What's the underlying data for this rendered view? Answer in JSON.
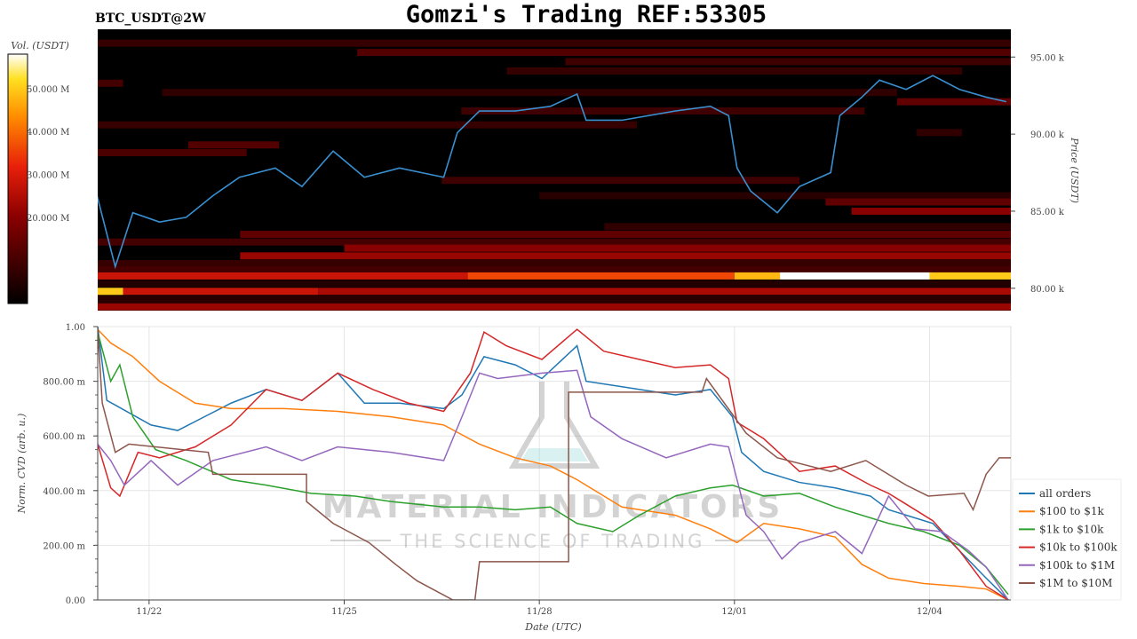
{
  "title": "Gomzi's Trading REF:53305",
  "chart_data": [
    {
      "type": "heatmap",
      "title": "BTC_USDT@2W",
      "ylabel": "Price (USDT)",
      "colorbar_label": "Vol. (USDT)",
      "colorbar_ticks": [
        "20.000 M",
        "30.000 M",
        "40.000 M",
        "50.000 M"
      ],
      "colorbar_values": [
        20,
        30,
        40,
        50
      ],
      "colorbar_range": [
        0,
        58
      ],
      "yticks": [
        "80.00 k",
        "85.00 k",
        "90.00 k",
        "95.00 k"
      ],
      "ytick_values": [
        80,
        85,
        90,
        95
      ],
      "ylim": [
        78.55,
        96.8
      ],
      "xlim_days": [
        0.21,
        14.25
      ],
      "price_series": [
        [
          0.2,
          86.0
        ],
        [
          0.48,
          81.4
        ],
        [
          0.75,
          84.9
        ],
        [
          1.16,
          84.3
        ],
        [
          1.57,
          84.6
        ],
        [
          1.98,
          86.0
        ],
        [
          2.39,
          87.2
        ],
        [
          2.94,
          87.8
        ],
        [
          3.35,
          86.6
        ],
        [
          3.83,
          88.9
        ],
        [
          4.31,
          87.2
        ],
        [
          4.85,
          87.8
        ],
        [
          5.53,
          87.2
        ],
        [
          5.74,
          90.1
        ],
        [
          6.08,
          91.5
        ],
        [
          6.63,
          91.5
        ],
        [
          7.17,
          91.8
        ],
        [
          7.58,
          92.6
        ],
        [
          7.72,
          90.9
        ],
        [
          8.27,
          90.9
        ],
        [
          9.09,
          91.5
        ],
        [
          9.63,
          91.8
        ],
        [
          9.91,
          91.2
        ],
        [
          10.04,
          87.8
        ],
        [
          10.25,
          86.3
        ],
        [
          10.66,
          84.9
        ],
        [
          11.0,
          86.6
        ],
        [
          11.48,
          87.5
        ],
        [
          11.62,
          91.2
        ],
        [
          11.96,
          92.4
        ],
        [
          12.23,
          93.5
        ],
        [
          12.64,
          92.9
        ],
        [
          13.05,
          93.8
        ],
        [
          13.46,
          92.9
        ],
        [
          13.87,
          92.4
        ],
        [
          14.18,
          92.1
        ]
      ],
      "bands": [
        [
          95.9,
          0.21,
          14.25,
          8
        ],
        [
          95.3,
          4.2,
          14.25,
          12
        ],
        [
          94.7,
          7.4,
          14.25,
          9
        ],
        [
          94.1,
          6.5,
          13.5,
          8
        ],
        [
          93.3,
          0.21,
          0.6,
          10
        ],
        [
          92.7,
          1.2,
          12.5,
          7
        ],
        [
          92.1,
          12.5,
          14.25,
          14
        ],
        [
          91.5,
          5.8,
          12.0,
          9
        ],
        [
          90.6,
          0.21,
          8.5,
          8
        ],
        [
          90.1,
          12.8,
          13.5,
          7
        ],
        [
          89.3,
          1.6,
          3.0,
          12
        ],
        [
          88.8,
          0.21,
          2.5,
          11
        ],
        [
          87.0,
          5.5,
          11.0,
          9
        ],
        [
          86.0,
          7.0,
          14.25,
          6
        ],
        [
          85.6,
          11.4,
          14.25,
          14
        ],
        [
          85.0,
          11.8,
          14.25,
          20
        ],
        [
          84.0,
          8.0,
          14.25,
          7
        ],
        [
          83.5,
          2.4,
          14.25,
          14
        ],
        [
          83.0,
          0.21,
          14.25,
          10
        ],
        [
          82.6,
          4.0,
          14.25,
          20
        ],
        [
          82.1,
          2.4,
          14.25,
          22
        ],
        [
          81.6,
          0.21,
          14.25,
          8
        ],
        [
          81.2,
          0.21,
          14.25,
          10
        ],
        [
          80.8,
          0.21,
          5.9,
          28
        ],
        [
          80.8,
          5.9,
          10.0,
          36
        ],
        [
          80.8,
          10.0,
          10.7,
          48
        ],
        [
          80.8,
          10.7,
          13.0,
          58
        ],
        [
          80.8,
          13.0,
          14.25,
          50
        ],
        [
          80.3,
          0.21,
          14.25,
          5
        ],
        [
          79.8,
          0.21,
          0.6,
          50
        ],
        [
          79.8,
          0.6,
          3.6,
          28
        ],
        [
          79.8,
          3.6,
          14.25,
          24
        ],
        [
          79.3,
          0.21,
          14.25,
          6
        ],
        [
          78.8,
          0.21,
          14.25,
          22
        ]
      ]
    },
    {
      "type": "line",
      "ylabel": "Norm. CVD (arb. u.)",
      "xlabel": "Date (UTC)",
      "ylim": [
        0,
        1
      ],
      "yticks": [
        "0.00",
        "200.00 m",
        "400.00 m",
        "600.00 m",
        "800.00 m",
        "1.00"
      ],
      "ytick_values": [
        0,
        0.2,
        0.4,
        0.6,
        0.8,
        1
      ],
      "xticks": [
        "11/22",
        "11/25",
        "11/28",
        "12/01",
        "12/04"
      ],
      "xtick_days": [
        1,
        4,
        7,
        10,
        13
      ],
      "xlim_days": [
        0.21,
        14.25
      ],
      "watermark": {
        "line1": "MATERIAL INDICATORS",
        "line2": "THE SCIENCE OF TRADING"
      },
      "legend_position": "bottom-right",
      "series": [
        {
          "name": "all orders",
          "color": "#1f77b4",
          "points": [
            [
              0.21,
              1.0
            ],
            [
              0.35,
              0.73
            ],
            [
              1.03,
              0.64
            ],
            [
              1.44,
              0.62
            ],
            [
              1.85,
              0.67
            ],
            [
              2.26,
              0.72
            ],
            [
              2.8,
              0.77
            ],
            [
              3.35,
              0.73
            ],
            [
              3.9,
              0.83
            ],
            [
              4.31,
              0.72
            ],
            [
              4.85,
              0.72
            ],
            [
              5.53,
              0.7
            ],
            [
              5.81,
              0.75
            ],
            [
              6.15,
              0.89
            ],
            [
              6.63,
              0.86
            ],
            [
              7.04,
              0.81
            ],
            [
              7.58,
              0.93
            ],
            [
              7.72,
              0.8
            ],
            [
              8.27,
              0.78
            ],
            [
              9.09,
              0.75
            ],
            [
              9.63,
              0.77
            ],
            [
              9.97,
              0.67
            ],
            [
              10.11,
              0.54
            ],
            [
              10.45,
              0.47
            ],
            [
              11.0,
              0.43
            ],
            [
              11.55,
              0.41
            ],
            [
              12.09,
              0.38
            ],
            [
              12.37,
              0.33
            ],
            [
              13.05,
              0.28
            ],
            [
              13.46,
              0.18
            ],
            [
              13.87,
              0.08
            ],
            [
              14.21,
              0.0
            ]
          ]
        },
        {
          "name": "$100 to $1k",
          "color": "#ff7f0e",
          "points": [
            [
              0.21,
              0.99
            ],
            [
              0.41,
              0.94
            ],
            [
              0.75,
              0.89
            ],
            [
              1.16,
              0.8
            ],
            [
              1.71,
              0.72
            ],
            [
              2.26,
              0.7
            ],
            [
              3.08,
              0.7
            ],
            [
              3.9,
              0.69
            ],
            [
              4.72,
              0.67
            ],
            [
              5.53,
              0.64
            ],
            [
              6.08,
              0.57
            ],
            [
              6.63,
              0.52
            ],
            [
              7.17,
              0.49
            ],
            [
              7.58,
              0.44
            ],
            [
              8.27,
              0.34
            ],
            [
              9.09,
              0.31
            ],
            [
              9.63,
              0.26
            ],
            [
              10.04,
              0.21
            ],
            [
              10.45,
              0.28
            ],
            [
              11.0,
              0.26
            ],
            [
              11.55,
              0.23
            ],
            [
              11.96,
              0.13
            ],
            [
              12.37,
              0.08
            ],
            [
              12.91,
              0.06
            ],
            [
              13.46,
              0.05
            ],
            [
              13.87,
              0.04
            ],
            [
              14.21,
              0.0
            ]
          ]
        },
        {
          "name": "$1k to $10k",
          "color": "#2ca02c",
          "points": [
            [
              0.21,
              0.98
            ],
            [
              0.41,
              0.8
            ],
            [
              0.55,
              0.86
            ],
            [
              0.75,
              0.67
            ],
            [
              1.1,
              0.55
            ],
            [
              1.57,
              0.51
            ],
            [
              2.26,
              0.44
            ],
            [
              2.8,
              0.42
            ],
            [
              3.49,
              0.39
            ],
            [
              4.17,
              0.38
            ],
            [
              4.72,
              0.36
            ],
            [
              5.53,
              0.34
            ],
            [
              6.08,
              0.34
            ],
            [
              6.63,
              0.33
            ],
            [
              7.17,
              0.34
            ],
            [
              7.58,
              0.28
            ],
            [
              8.13,
              0.25
            ],
            [
              8.54,
              0.31
            ],
            [
              9.09,
              0.38
            ],
            [
              9.63,
              0.41
            ],
            [
              9.97,
              0.42
            ],
            [
              10.45,
              0.38
            ],
            [
              11.0,
              0.39
            ],
            [
              11.55,
              0.34
            ],
            [
              12.37,
              0.28
            ],
            [
              12.91,
              0.25
            ],
            [
              13.46,
              0.2
            ],
            [
              13.87,
              0.12
            ],
            [
              14.21,
              0.02
            ]
          ]
        },
        {
          "name": "$10k to $100k",
          "color": "#d62728",
          "points": [
            [
              0.21,
              0.57
            ],
            [
              0.41,
              0.41
            ],
            [
              0.55,
              0.38
            ],
            [
              0.83,
              0.54
            ],
            [
              1.16,
              0.52
            ],
            [
              1.71,
              0.56
            ],
            [
              2.26,
              0.64
            ],
            [
              2.8,
              0.77
            ],
            [
              3.35,
              0.73
            ],
            [
              3.9,
              0.83
            ],
            [
              4.44,
              0.77
            ],
            [
              4.99,
              0.72
            ],
            [
              5.53,
              0.69
            ],
            [
              5.94,
              0.83
            ],
            [
              6.15,
              0.98
            ],
            [
              6.49,
              0.93
            ],
            [
              7.04,
              0.88
            ],
            [
              7.58,
              0.99
            ],
            [
              7.99,
              0.91
            ],
            [
              8.54,
              0.88
            ],
            [
              9.09,
              0.85
            ],
            [
              9.63,
              0.86
            ],
            [
              9.91,
              0.81
            ],
            [
              10.04,
              0.65
            ],
            [
              10.45,
              0.59
            ],
            [
              11.0,
              0.47
            ],
            [
              11.55,
              0.49
            ],
            [
              12.09,
              0.42
            ],
            [
              12.37,
              0.39
            ],
            [
              13.05,
              0.29
            ],
            [
              13.46,
              0.18
            ],
            [
              13.87,
              0.05
            ],
            [
              14.21,
              0.0
            ]
          ]
        },
        {
          "name": "$100k to $1M",
          "color": "#9467bd",
          "points": [
            [
              0.21,
              0.57
            ],
            [
              0.41,
              0.51
            ],
            [
              0.62,
              0.42
            ],
            [
              1.03,
              0.51
            ],
            [
              1.44,
              0.42
            ],
            [
              1.98,
              0.51
            ],
            [
              2.8,
              0.56
            ],
            [
              3.35,
              0.51
            ],
            [
              3.9,
              0.56
            ],
            [
              4.72,
              0.54
            ],
            [
              5.53,
              0.51
            ],
            [
              5.81,
              0.67
            ],
            [
              6.08,
              0.83
            ],
            [
              6.36,
              0.81
            ],
            [
              7.04,
              0.83
            ],
            [
              7.58,
              0.84
            ],
            [
              7.79,
              0.67
            ],
            [
              8.27,
              0.59
            ],
            [
              8.95,
              0.52
            ],
            [
              9.63,
              0.57
            ],
            [
              9.91,
              0.56
            ],
            [
              10.18,
              0.31
            ],
            [
              10.45,
              0.25
            ],
            [
              10.73,
              0.15
            ],
            [
              11.0,
              0.21
            ],
            [
              11.55,
              0.25
            ],
            [
              11.96,
              0.17
            ],
            [
              12.37,
              0.38
            ],
            [
              12.78,
              0.26
            ],
            [
              13.19,
              0.25
            ],
            [
              13.6,
              0.18
            ],
            [
              13.87,
              0.12
            ],
            [
              14.21,
              0.0
            ]
          ]
        },
        {
          "name": "$1M to $10M",
          "color": "#8c564b",
          "points": [
            [
              0.21,
              0.99
            ],
            [
              0.28,
              0.72
            ],
            [
              0.48,
              0.54
            ],
            [
              0.69,
              0.57
            ],
            [
              1.91,
              0.54
            ],
            [
              1.98,
              0.46
            ],
            [
              3.42,
              0.46
            ],
            [
              3.42,
              0.36
            ],
            [
              3.83,
              0.28
            ],
            [
              4.38,
              0.21
            ],
            [
              4.79,
              0.13
            ],
            [
              5.12,
              0.07
            ],
            [
              5.67,
              0.0
            ],
            [
              6.01,
              0.0
            ],
            [
              6.08,
              0.14
            ],
            [
              7.45,
              0.14
            ],
            [
              7.45,
              0.76
            ],
            [
              9.5,
              0.76
            ],
            [
              9.57,
              0.81
            ],
            [
              10.18,
              0.61
            ],
            [
              10.66,
              0.52
            ],
            [
              11.48,
              0.47
            ],
            [
              12.02,
              0.51
            ],
            [
              12.64,
              0.42
            ],
            [
              12.98,
              0.38
            ],
            [
              13.53,
              0.39
            ],
            [
              13.67,
              0.33
            ],
            [
              13.87,
              0.46
            ],
            [
              14.07,
              0.52
            ],
            [
              14.25,
              0.52
            ]
          ]
        }
      ]
    }
  ]
}
